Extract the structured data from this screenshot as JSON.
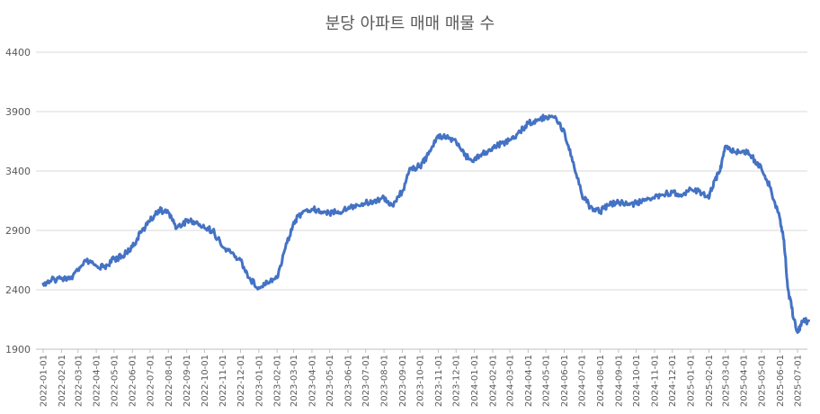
{
  "chart_data": {
    "type": "line",
    "title": "분당 아파트 매매 매물 수",
    "ylim": [
      1900,
      4400
    ],
    "yticks": [
      1900,
      2400,
      2900,
      3400,
      3900,
      4400
    ],
    "xticks": [
      "2022-01-01",
      "2022-02-01",
      "2022-03-01",
      "2022-04-01",
      "2022-05-01",
      "2022-06-01",
      "2022-07-01",
      "2022-08-01",
      "2022-09-01",
      "2022-10-01",
      "2022-11-01",
      "2022-12-01",
      "2023-01-01",
      "2023-02-01",
      "2023-03-01",
      "2023-04-01",
      "2023-05-01",
      "2023-06-01",
      "2023-07-01",
      "2023-08-01",
      "2023-09-01",
      "2023-10-01",
      "2023-11-01",
      "2023-12-01",
      "2024-01-01",
      "2024-02-01",
      "2024-03-01",
      "2024-04-01",
      "2024-05-01",
      "2024-06-01",
      "2024-07-01",
      "2024-08-01",
      "2024-09-01",
      "2024-10-01",
      "2024-11-01",
      "2024-12-01",
      "2025-01-01",
      "2025-02-01",
      "2025-03-01",
      "2025-04-01",
      "2025-05-01",
      "2025-06-01",
      "2025-07-01"
    ],
    "grid": true,
    "legend": "none",
    "color": "#4472c4",
    "series": [
      {
        "x": [
          "2022-01-01",
          "2022-01-15",
          "2022-02-01",
          "2022-02-15",
          "2022-03-01",
          "2022-03-15",
          "2022-04-01",
          "2022-04-15",
          "2022-05-01",
          "2022-05-15",
          "2022-06-01",
          "2022-06-15",
          "2022-07-01",
          "2022-07-15",
          "2022-08-01",
          "2022-08-15",
          "2022-09-01",
          "2022-09-15",
          "2022-10-01",
          "2022-10-15",
          "2022-11-01",
          "2022-11-15",
          "2022-12-01",
          "2022-12-15",
          "2023-01-01",
          "2023-01-15",
          "2023-02-01",
          "2023-02-15",
          "2023-03-01",
          "2023-03-15",
          "2023-04-01",
          "2023-04-15",
          "2023-05-01",
          "2023-05-15",
          "2023-06-01",
          "2023-06-15",
          "2023-07-01",
          "2023-07-15",
          "2023-08-01",
          "2023-08-15",
          "2023-09-01",
          "2023-09-15",
          "2023-10-01",
          "2023-10-15",
          "2023-11-01",
          "2023-11-15",
          "2023-12-01",
          "2023-12-15",
          "2024-01-01",
          "2024-01-15",
          "2024-02-01",
          "2024-02-15",
          "2024-03-01",
          "2024-03-15",
          "2024-04-01",
          "2024-04-15",
          "2024-05-01",
          "2024-05-15",
          "2024-06-01",
          "2024-06-15",
          "2024-07-01",
          "2024-07-15",
          "2024-08-01",
          "2024-08-15",
          "2024-09-01",
          "2024-09-15",
          "2024-10-01",
          "2024-10-15",
          "2024-11-01",
          "2024-11-15",
          "2024-12-01",
          "2024-12-15",
          "2025-01-01",
          "2025-01-15",
          "2025-02-01",
          "2025-02-10",
          "2025-02-20",
          "2025-03-01",
          "2025-03-15",
          "2025-04-01",
          "2025-04-15",
          "2025-05-01",
          "2025-05-15",
          "2025-06-01",
          "2025-06-08",
          "2025-06-15",
          "2025-06-25",
          "2025-07-01",
          "2025-07-10",
          "2025-07-20"
        ],
        "values": [
          2450,
          2480,
          2500,
          2490,
          2560,
          2640,
          2600,
          2590,
          2660,
          2680,
          2760,
          2880,
          2980,
          3070,
          3050,
          2920,
          2980,
          2970,
          2920,
          2900,
          2760,
          2710,
          2650,
          2500,
          2420,
          2470,
          2500,
          2750,
          2970,
          3040,
          3080,
          3060,
          3040,
          3060,
          3080,
          3120,
          3130,
          3150,
          3180,
          3110,
          3230,
          3420,
          3440,
          3540,
          3700,
          3690,
          3650,
          3530,
          3500,
          3540,
          3600,
          3630,
          3660,
          3720,
          3800,
          3820,
          3860,
          3850,
          3740,
          3480,
          3200,
          3100,
          3060,
          3110,
          3140,
          3120,
          3130,
          3150,
          3170,
          3200,
          3220,
          3200,
          3250,
          3230,
          3170,
          3320,
          3400,
          3610,
          3560,
          3570,
          3520,
          3420,
          3270,
          3000,
          2820,
          2400,
          2150,
          2040,
          2130,
          2140
        ]
      }
    ]
  }
}
